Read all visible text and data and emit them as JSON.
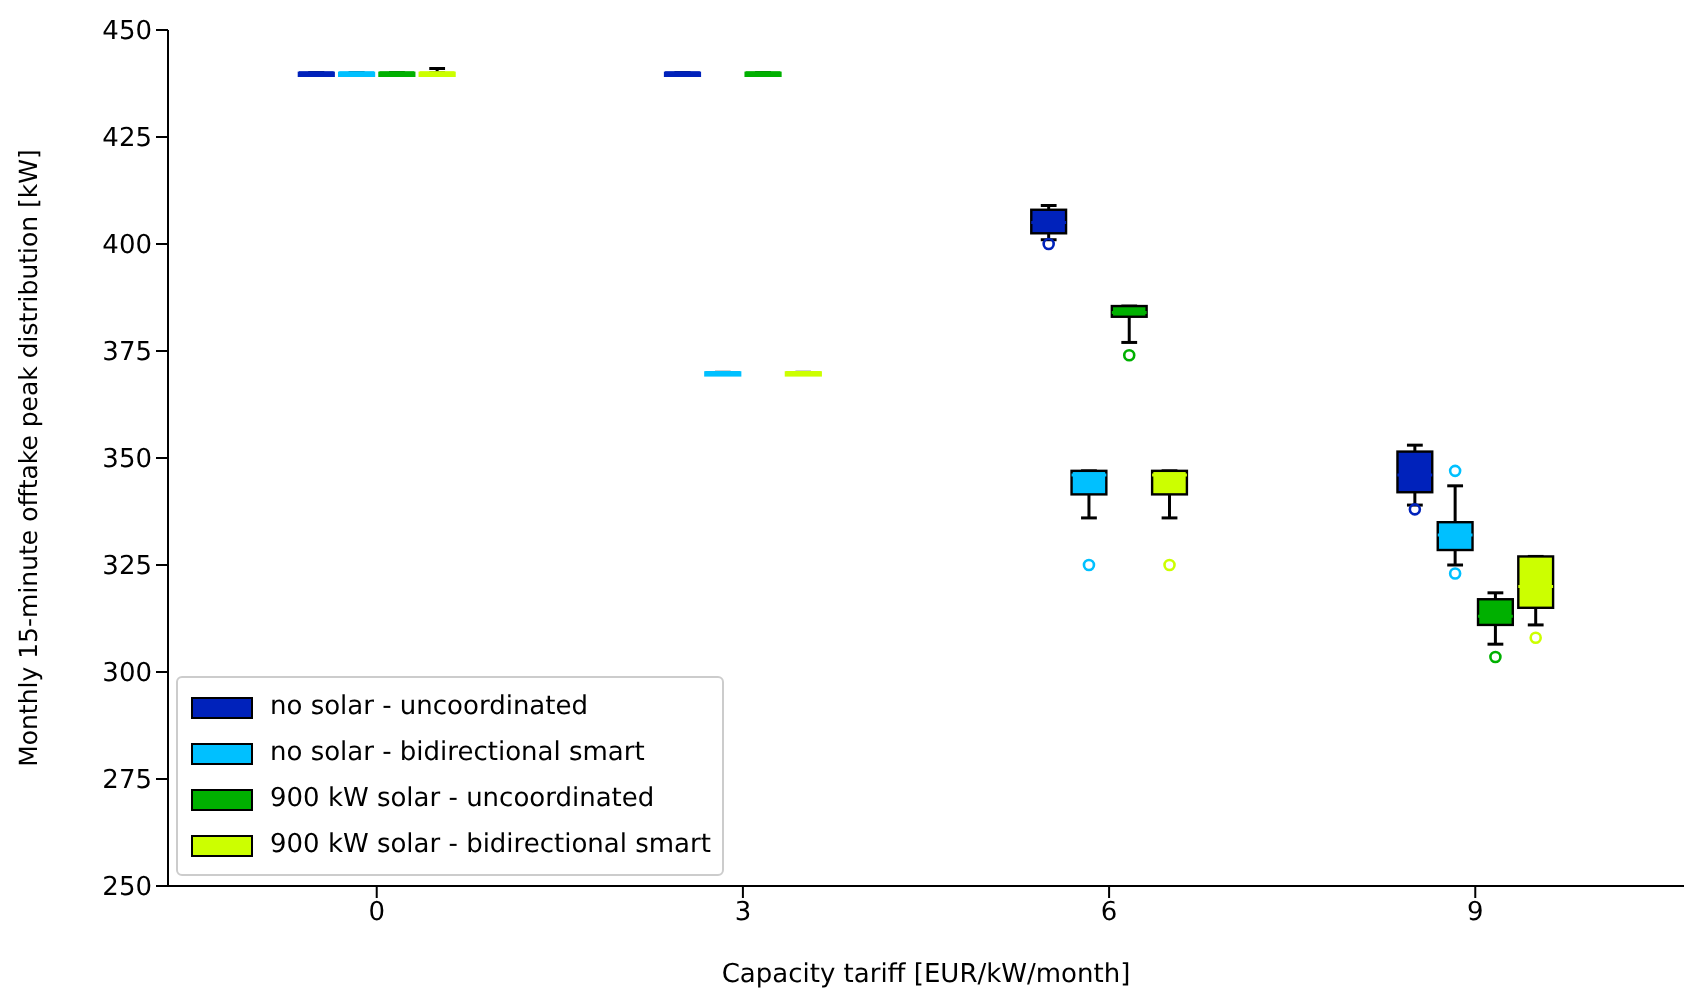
{
  "chart_data": {
    "type": "box",
    "xlabel": "Capacity tariff [EUR/kW/month]",
    "ylabel": "Monthly 15-minute offtake peak distribution [kW]",
    "categories": [
      "0",
      "3",
      "6",
      "9"
    ],
    "ylim": [
      250,
      450
    ],
    "yticks": [
      250,
      275,
      300,
      325,
      350,
      375,
      400,
      425,
      450
    ],
    "legend": "bottom left",
    "grid": false,
    "series": [
      {
        "name": "no solar - uncoordinated",
        "color": "#0022bb",
        "boxes": [
          {
            "low": 440,
            "q1": 440,
            "median": 440,
            "q3": 440,
            "high": 440
          },
          {
            "low": 440,
            "q1": 440,
            "median": 440,
            "q3": 440,
            "high": 440
          },
          {
            "low": 401,
            "q1": 402.5,
            "median": 405,
            "q3": 408,
            "high": 409,
            "outliers": [
              400
            ]
          },
          {
            "low": 339,
            "q1": 342,
            "median": 346,
            "q3": 351.5,
            "high": 353,
            "outliers": [
              338
            ]
          }
        ]
      },
      {
        "name": "no solar - bidirectional smart",
        "color": "#00c0ff",
        "boxes": [
          {
            "low": 440,
            "q1": 440,
            "median": 440,
            "q3": 440,
            "high": 440
          },
          {
            "low": 370,
            "q1": 370,
            "median": 370,
            "q3": 370,
            "high": 370
          },
          {
            "low": 336,
            "q1": 341.5,
            "median": 346,
            "q3": 347,
            "high": 347,
            "outliers": [
              325
            ]
          },
          {
            "low": 325,
            "q1": 328.5,
            "median": 332,
            "q3": 335,
            "high": 343.5,
            "outliers": [
              347,
              323
            ]
          }
        ]
      },
      {
        "name": "900 kW solar - uncoordinated",
        "color": "#00b000",
        "boxes": [
          {
            "low": 440,
            "q1": 440,
            "median": 440,
            "q3": 440,
            "high": 440
          },
          {
            "low": 440,
            "q1": 440,
            "median": 440,
            "q3": 440,
            "high": 440
          },
          {
            "low": 377,
            "q1": 383,
            "median": 384,
            "q3": 385.5,
            "high": 385.5,
            "outliers": [
              374
            ]
          },
          {
            "low": 306.5,
            "q1": 311,
            "median": 313,
            "q3": 317,
            "high": 318.5,
            "outliers": [
              303.5
            ]
          }
        ]
      },
      {
        "name": "900 kW solar - bidirectional smart",
        "color": "#ccff00",
        "boxes": [
          {
            "low": 440,
            "q1": 440,
            "median": 440,
            "q3": 440,
            "high": 441
          },
          {
            "low": 370,
            "q1": 370,
            "median": 370,
            "q3": 370,
            "high": 370
          },
          {
            "low": 336,
            "q1": 341.5,
            "median": 346,
            "q3": 347,
            "high": 347,
            "outliers": [
              325
            ]
          },
          {
            "low": 311,
            "q1": 315,
            "median": 320,
            "q3": 327,
            "high": 327,
            "outliers": [
              308
            ]
          }
        ]
      }
    ]
  }
}
